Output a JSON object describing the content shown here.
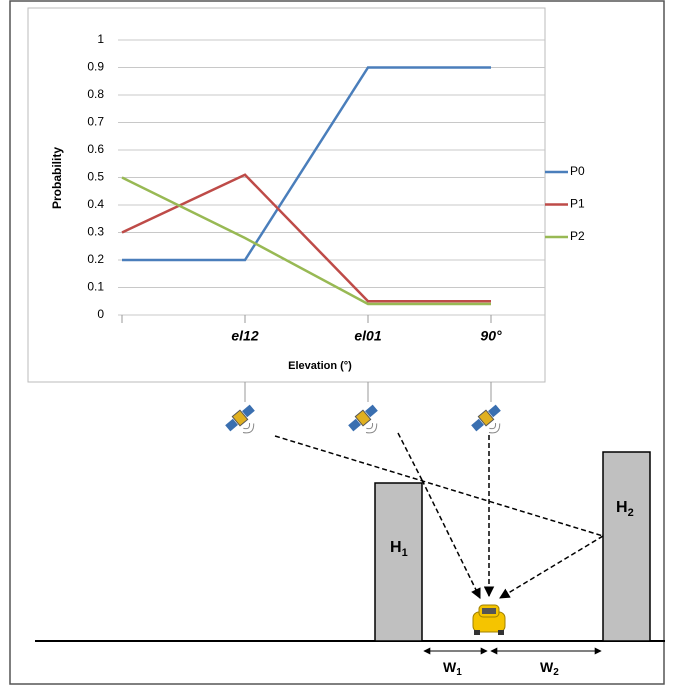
{
  "chart_data": {
    "type": "line",
    "y_label": "Probability",
    "x_label": "Elevation (°)",
    "categories": [
      null,
      "el12",
      "el01",
      "90°"
    ],
    "series": [
      {
        "name": "P0",
        "color": "#4a7ebb",
        "values": [
          0.2,
          0.2,
          0.9,
          0.9
        ]
      },
      {
        "name": "P1",
        "color": "#be4b48",
        "values": [
          0.3,
          0.51,
          0.05,
          0.05
        ]
      },
      {
        "name": "P2",
        "color": "#98b954",
        "values": [
          0.5,
          0.28,
          0.04,
          0.04
        ]
      }
    ],
    "ylim": [
      0,
      1
    ],
    "yticks": [
      0,
      0.1,
      0.2,
      0.3,
      0.4,
      0.5,
      0.6,
      0.7,
      0.8,
      0.9,
      1
    ],
    "grid": true,
    "legend": "right"
  },
  "diagram": {
    "buildings": [
      {
        "label": "H",
        "sub": "1"
      },
      {
        "label": "H",
        "sub": "2"
      }
    ],
    "widths": [
      {
        "label": "W",
        "sub": "1"
      },
      {
        "label": "W",
        "sub": "2"
      }
    ]
  }
}
